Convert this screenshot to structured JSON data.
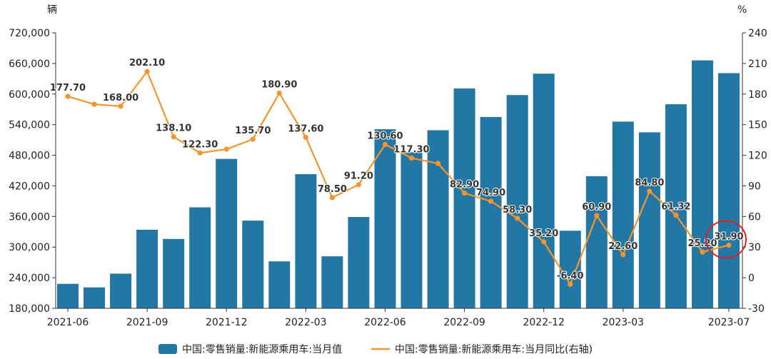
{
  "chart_data": {
    "type": "bar",
    "categories": [
      "2021-06",
      "2021-07",
      "2021-08",
      "2021-09",
      "2021-10",
      "2021-11",
      "2021-12",
      "2022-01",
      "2022-02",
      "2022-03",
      "2022-04",
      "2022-05",
      "2022-06",
      "2022-07",
      "2022-08",
      "2022-09",
      "2022-10",
      "2022-11",
      "2022-12",
      "2023-01",
      "2023-02",
      "2023-03",
      "2023-04",
      "2023-05",
      "2023-06",
      "2023-07"
    ],
    "x_tick_labels": [
      "2021-06",
      "2021-09",
      "2021-12",
      "2022-03",
      "2022-06",
      "2022-09",
      "2022-12",
      "2023-03",
      "2023-07"
    ],
    "x_tick_indices": [
      0,
      3,
      6,
      9,
      12,
      15,
      18,
      21,
      25
    ],
    "series": [
      {
        "name": "中国:零售销量:新能源乘用车:当月值",
        "type": "bar",
        "axis": "left",
        "color": "#2377a4",
        "values": [
          228000,
          221000,
          248000,
          334000,
          316000,
          378000,
          473000,
          352000,
          272000,
          443000,
          282000,
          359000,
          531000,
          486000,
          529000,
          611000,
          555000,
          598000,
          640000,
          332000,
          439000,
          546000,
          525000,
          580000,
          666000,
          641000
        ]
      },
      {
        "name": "中国:零售销量:新能源乘用车:当月同比(右轴)",
        "type": "line",
        "axis": "right",
        "color": "#f5952c",
        "values": [
          177.7,
          170,
          168.0,
          202.1,
          138.1,
          122.3,
          126,
          135.7,
          180.9,
          137.6,
          78.5,
          91.2,
          130.6,
          117.3,
          112,
          82.9,
          74.9,
          58.3,
          35.2,
          -6.4,
          60.9,
          22.6,
          84.8,
          61.32,
          25.2,
          31.9
        ],
        "labels": [
          "177.70",
          "",
          "168.00",
          "202.10",
          "138.10",
          "122.30",
          "",
          "135.70",
          "180.90",
          "137.60",
          "78.50",
          "91.20",
          "130.60",
          "117.30",
          "",
          "82.90",
          "74.90",
          "58.30",
          "35.20",
          "-6.40",
          "60.90",
          "22.60",
          "84.80",
          "61.32",
          "25.20",
          "31.90"
        ]
      }
    ],
    "y_left": {
      "unit": "辆",
      "min": 180000,
      "max": 720000,
      "step": 60000,
      "tick_labels": [
        "180,000",
        "240,000",
        "300,000",
        "360,000",
        "420,000",
        "480,000",
        "540,000",
        "600,000",
        "660,000",
        "720,000"
      ]
    },
    "y_right": {
      "unit": "%",
      "min": -30,
      "max": 240,
      "step": 30,
      "tick_labels": [
        "-30",
        "0",
        "30",
        "60",
        "90",
        "120",
        "150",
        "180",
        "210",
        "240"
      ]
    },
    "highlight_index": 25,
    "highlight_color": "#e02020",
    "legend_position": "bottom",
    "grid": false
  }
}
